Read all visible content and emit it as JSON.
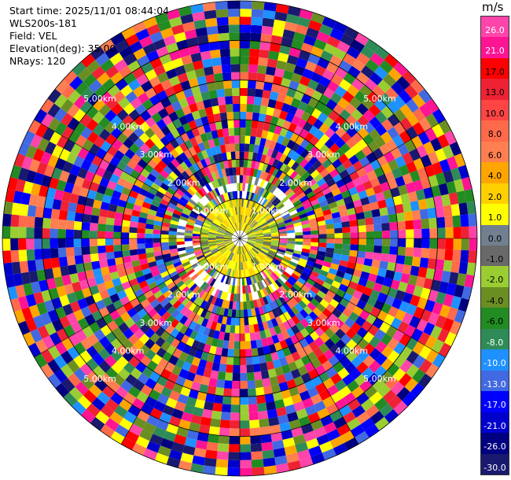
{
  "header": {
    "start_time": "Start time: 2025/11/01 08:44:04",
    "instrument": "WLS200s-181",
    "field": "Field: VEL",
    "elevation": "Elevation(deg): 35.00",
    "nrays": "NRays: 120"
  },
  "chart_data": {
    "type": "heatmap",
    "projection": "polar-ppi",
    "field": "VEL",
    "n_rays": 120,
    "max_range_km": 6.0,
    "range_rings_km": [
      1.0,
      2.0,
      3.0,
      4.0,
      5.0
    ],
    "ring_labels": [
      "1.00km",
      "2.00km",
      "3.00km",
      "4.00km",
      "5.00km"
    ],
    "grid": true,
    "colorbar": {
      "unit": "m/s",
      "placement": "right",
      "ticks": [
        "26.0",
        "21.0",
        "17.0",
        "13.0",
        "10.0",
        "8.0",
        "6.0",
        "4.0",
        "2.0",
        "1.0",
        "0.0",
        "-1.0",
        "-2.0",
        "-4.0",
        "-6.0",
        "-8.0",
        "-10.0",
        "-13.0",
        "-17.0",
        "-21.0",
        "-26.0",
        "-30.0"
      ],
      "colors": [
        "#ff44aa",
        "#ff1493",
        "#ff0000",
        "#ee2233",
        "#ff4444",
        "#ff6a4a",
        "#ff7f50",
        "#ffa500",
        "#ffd000",
        "#ffff00",
        "#708090",
        "#696969",
        "#9acd32",
        "#6b8e23",
        "#228b22",
        "#2e8b57",
        "#1e90ff",
        "#4169e1",
        "#0000ff",
        "#0000cd",
        "#000080",
        "#191970"
      ]
    }
  }
}
